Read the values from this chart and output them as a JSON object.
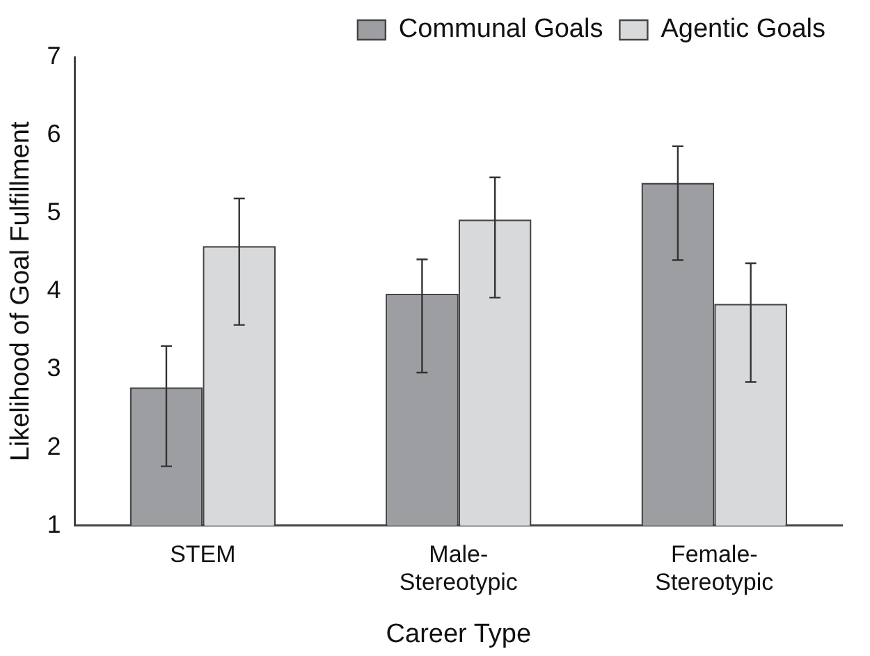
{
  "chart_data": {
    "type": "bar",
    "xlabel": "Career Type",
    "ylabel": "Likelihood of Goal Fulfillment",
    "categories": [
      "STEM",
      "Male-Stereotypic",
      "Female-Stereotypic"
    ],
    "series": [
      {
        "name": "Communal Goals",
        "color": "#9d9ea2",
        "values": [
          2.77,
          3.97,
          5.39
        ],
        "errors": [
          [
            1.76,
            3.3
          ],
          [
            2.96,
            4.41
          ],
          [
            4.4,
            5.86
          ]
        ]
      },
      {
        "name": "Agentic Goals",
        "color": "#d8d9db",
        "values": [
          4.58,
          4.92,
          3.84
        ],
        "errors": [
          [
            3.57,
            5.19
          ],
          [
            3.92,
            5.46
          ],
          [
            2.84,
            4.36
          ]
        ]
      }
    ],
    "ylim": [
      1,
      7
    ],
    "yticks": [
      1,
      2,
      3,
      4,
      5,
      6,
      7
    ],
    "grid": false,
    "legend": "top right"
  }
}
